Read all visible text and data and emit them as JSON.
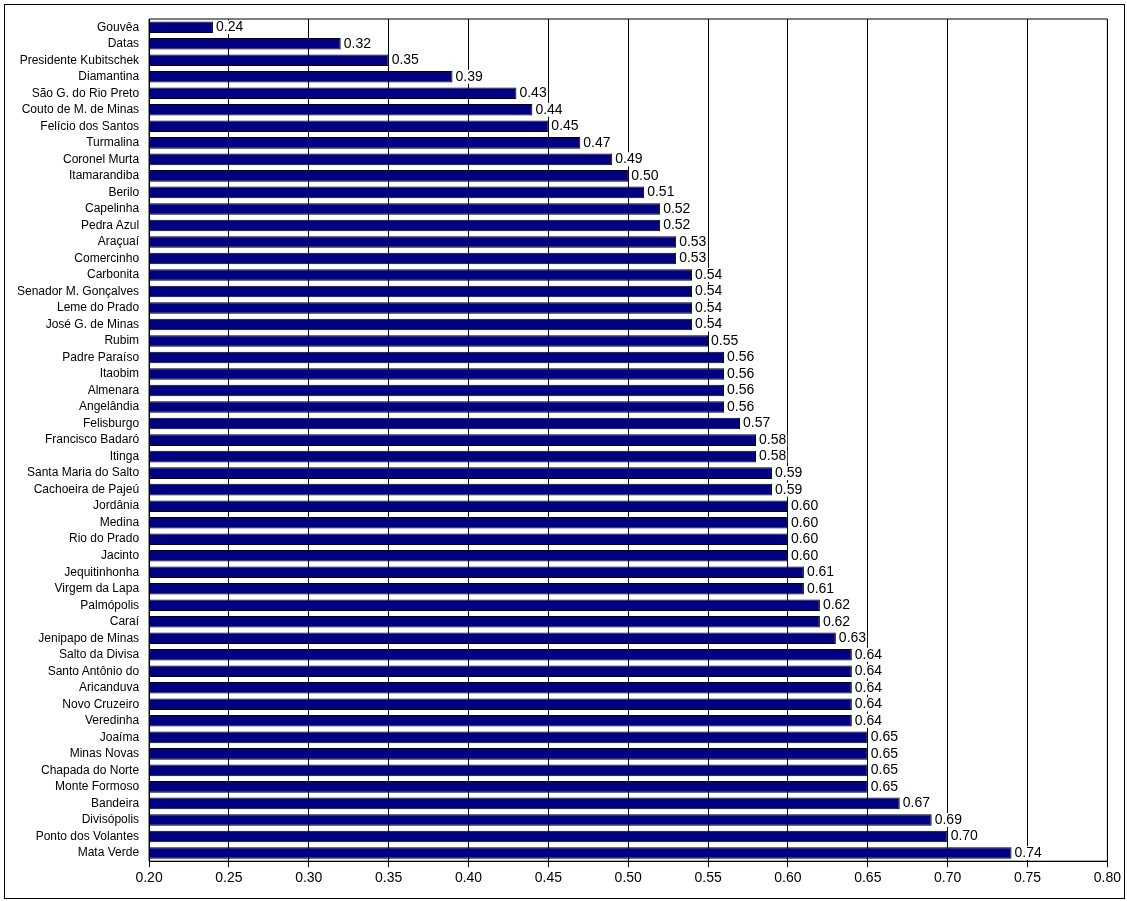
{
  "chart_data": {
    "type": "bar",
    "orientation": "horizontal",
    "categories": [
      "Gouvêa",
      "Datas",
      "Presidente Kubitschek",
      "Diamantina",
      "São G. do Rio Preto",
      "Couto de M. de Minas",
      "Felício dos Santos",
      "Turmalina",
      "Coronel Murta",
      "Itamarandiba",
      "Berilo",
      "Capelinha",
      "Pedra Azul",
      "Araçuaí",
      "Comercinho",
      "Carbonita",
      "Senador M. Gonçalves",
      "Leme do Prado",
      "José G. de Minas",
      "Rubim",
      "Padre Paraíso",
      "Itaobim",
      "Almenara",
      "Angelândia",
      "Felisburgo",
      "Francisco Badaró",
      "Itinga",
      "Santa Maria do Salto",
      "Cachoeira de Pajeú",
      "Jordânia",
      "Medina",
      "Rio do Prado",
      "Jacinto",
      "Jequitinhonha",
      "Virgem da Lapa",
      "Palmópolis",
      "Caraí",
      "Jenipapo de Minas",
      "Salto da Divisa",
      "Santo Antônio do",
      "Aricanduva",
      "Novo Cruzeiro",
      "Veredinha",
      "Joaíma",
      "Minas Novas",
      "Chapada do Norte",
      "Monte Formoso",
      "Bandeira",
      "Divisópolis",
      "Ponto dos Volantes",
      "Mata Verde"
    ],
    "values": [
      0.24,
      0.32,
      0.35,
      0.39,
      0.43,
      0.44,
      0.45,
      0.47,
      0.49,
      0.5,
      0.51,
      0.52,
      0.52,
      0.53,
      0.53,
      0.54,
      0.54,
      0.54,
      0.54,
      0.55,
      0.56,
      0.56,
      0.56,
      0.56,
      0.57,
      0.58,
      0.58,
      0.59,
      0.59,
      0.6,
      0.6,
      0.6,
      0.6,
      0.61,
      0.61,
      0.62,
      0.62,
      0.63,
      0.64,
      0.64,
      0.64,
      0.64,
      0.64,
      0.65,
      0.65,
      0.65,
      0.65,
      0.67,
      0.69,
      0.7,
      0.74
    ],
    "color": "#000080",
    "xlim": [
      0.2,
      0.8
    ],
    "xticks": [
      {
        "value": 0.2,
        "label": "0.20"
      },
      {
        "value": 0.25,
        "label": "0.25"
      },
      {
        "value": 0.3,
        "label": "0.30"
      },
      {
        "value": 0.35,
        "label": "0.35"
      },
      {
        "value": 0.4,
        "label": "0.40"
      },
      {
        "value": 0.45,
        "label": "0.45"
      },
      {
        "value": 0.5,
        "label": "0.50"
      },
      {
        "value": 0.55,
        "label": "0.55"
      },
      {
        "value": 0.6,
        "label": "0.60"
      },
      {
        "value": 0.65,
        "label": "0.65"
      },
      {
        "value": 0.7,
        "label": "0.70"
      },
      {
        "value": 0.75,
        "label": "0.75"
      },
      {
        "value": 0.8,
        "label": "0.80"
      }
    ],
    "value_labels": [
      "0.24",
      "0.32",
      "0.35",
      "0.39",
      "0.43",
      "0.44",
      "0.45",
      "0.47",
      "0.49",
      "0.50",
      "0.51",
      "0.52",
      "0.52",
      "0.53",
      "0.53",
      "0.54",
      "0.54",
      "0.54",
      "0.54",
      "0.55",
      "0.56",
      "0.56",
      "0.56",
      "0.56",
      "0.57",
      "0.58",
      "0.58",
      "0.59",
      "0.59",
      "0.60",
      "0.60",
      "0.60",
      "0.60",
      "0.61",
      "0.61",
      "0.62",
      "0.62",
      "0.63",
      "0.64",
      "0.64",
      "0.64",
      "0.64",
      "0.64",
      "0.65",
      "0.65",
      "0.65",
      "0.65",
      "0.67",
      "0.69",
      "0.70",
      "0.74"
    ],
    "grid": "x"
  }
}
